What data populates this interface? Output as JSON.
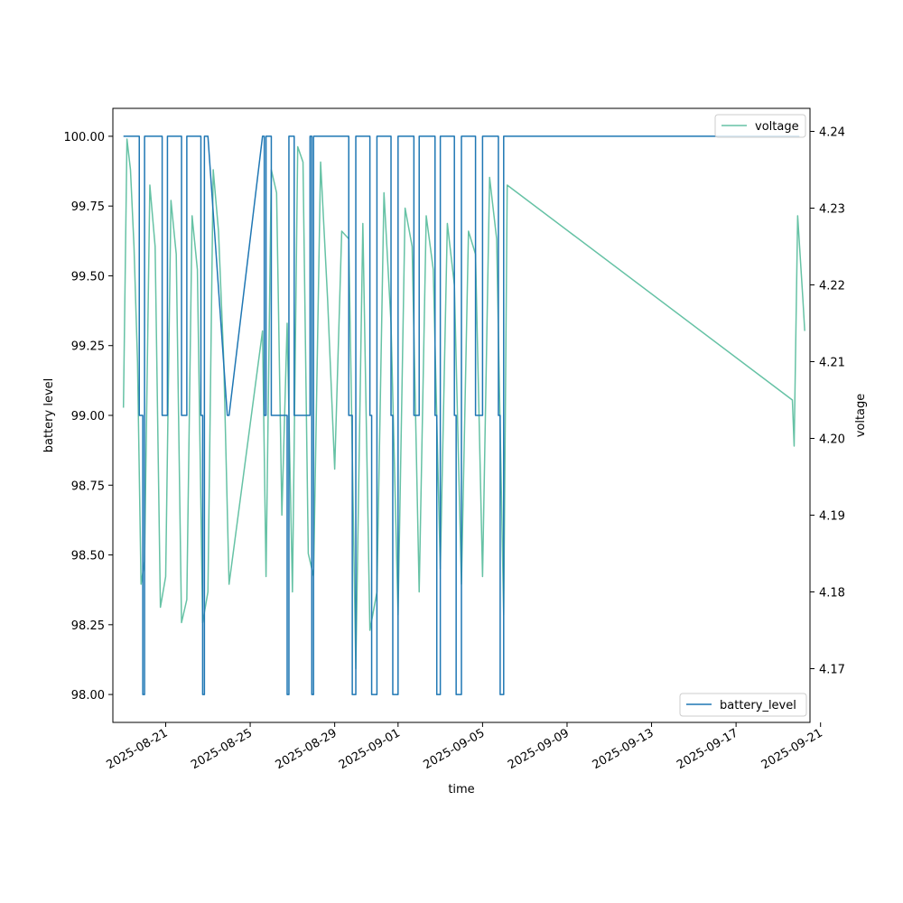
{
  "chart_data": {
    "type": "line",
    "title": "",
    "xlabel": "time",
    "ylabel": "battery level",
    "y2label": "voltage",
    "xlim": [
      "2025-08-18T12:00",
      "2025-09-20T12:00"
    ],
    "ylim": [
      97.9,
      100.1
    ],
    "y2lim": [
      4.163,
      4.243
    ],
    "x_ticks": [
      "2025-08-21",
      "2025-08-25",
      "2025-08-29",
      "2025-09-01",
      "2025-09-05",
      "2025-09-09",
      "2025-09-13",
      "2025-09-17",
      "2025-09-21"
    ],
    "y_ticks": [
      "98.00",
      "98.25",
      "98.50",
      "98.75",
      "99.00",
      "99.25",
      "99.50",
      "99.75",
      "100.00"
    ],
    "y2_ticks": [
      "4.17",
      "4.18",
      "4.19",
      "4.20",
      "4.21",
      "4.22",
      "4.23",
      "4.24"
    ],
    "grid": false,
    "series": [
      {
        "name": "battery_level",
        "axis": "left",
        "color": "#1f77b4",
        "legend": "bottom-right",
        "x": [
          "2025-08-19T00:00",
          "2025-08-19T18:00",
          "2025-08-19T18:00",
          "2025-08-19T22:00",
          "2025-08-19T22:00",
          "2025-08-20T00:00",
          "2025-08-20T00:00",
          "2025-08-20T20:00",
          "2025-08-20T20:00",
          "2025-08-21T02:00",
          "2025-08-21T02:00",
          "2025-08-21T18:00",
          "2025-08-21T18:00",
          "2025-08-22T00:00",
          "2025-08-22T00:00",
          "2025-08-22T16:00",
          "2025-08-22T16:00",
          "2025-08-22T18:00",
          "2025-08-22T18:00",
          "2025-08-22T20:00",
          "2025-08-22T20:00",
          "2025-08-23T00:00",
          "2025-08-23T00:00",
          "2025-08-23T22:00",
          "2025-08-24T00:00",
          "2025-08-25T14:00",
          "2025-08-25T16:00",
          "2025-08-25T16:00",
          "2025-08-25T18:00",
          "2025-08-25T18:00",
          "2025-08-26T00:00",
          "2025-08-26T00:00",
          "2025-08-26T18:00",
          "2025-08-26T18:00",
          "2025-08-26T20:00",
          "2025-08-26T20:00",
          "2025-08-27T02:00",
          "2025-08-27T02:00",
          "2025-08-27T20:00",
          "2025-08-27T20:00",
          "2025-08-27T22:00",
          "2025-08-27T22:00",
          "2025-08-28T00:00",
          "2025-08-28T00:00",
          "2025-08-29T16:00",
          "2025-08-29T16:00",
          "2025-08-29T20:00",
          "2025-08-29T20:00",
          "2025-08-30T00:00",
          "2025-08-30T00:00",
          "2025-08-30T16:00",
          "2025-08-30T16:00",
          "2025-08-30T18:00",
          "2025-08-30T18:00",
          "2025-08-31T00:00",
          "2025-08-31T00:00",
          "2025-08-31T16:00",
          "2025-08-31T16:00",
          "2025-08-31T18:00",
          "2025-08-31T18:00",
          "2025-09-01T00:00",
          "2025-09-01T00:00",
          "2025-09-01T18:00",
          "2025-09-01T18:00",
          "2025-09-02T00:00",
          "2025-09-02T00:00",
          "2025-09-02T18:00",
          "2025-09-02T18:00",
          "2025-09-02T20:00",
          "2025-09-02T20:00",
          "2025-09-03T00:00",
          "2025-09-03T00:00",
          "2025-09-03T16:00",
          "2025-09-03T16:00",
          "2025-09-03T18:00",
          "2025-09-03T18:00",
          "2025-09-04T00:00",
          "2025-09-04T00:00",
          "2025-09-04T16:00",
          "2025-09-04T16:00",
          "2025-09-05T00:00",
          "2025-09-05T00:00",
          "2025-09-05T18:00",
          "2025-09-05T18:00",
          "2025-09-05T20:00",
          "2025-09-05T20:00",
          "2025-09-06T00:00",
          "2025-09-06T00:00",
          "2025-09-19T18:00",
          "2025-09-19T18:00",
          "2025-09-20T00:00"
        ],
        "values": [
          100,
          100,
          99,
          99,
          98,
          98,
          100,
          100,
          99,
          99,
          100,
          100,
          99,
          99,
          100,
          100,
          99,
          99,
          98,
          98,
          100,
          100,
          100,
          99,
          99,
          100,
          100,
          99,
          99,
          100,
          100,
          99,
          99,
          98,
          98,
          100,
          100,
          99,
          99,
          100,
          100,
          98,
          98,
          100,
          100,
          99,
          99,
          98,
          98,
          100,
          100,
          99,
          99,
          98,
          98,
          100,
          100,
          99,
          99,
          98,
          98,
          100,
          100,
          99,
          99,
          100,
          100,
          99,
          99,
          98,
          98,
          100,
          100,
          99,
          99,
          98,
          98,
          100,
          100,
          99,
          99,
          100,
          100,
          99,
          99,
          98,
          98,
          100,
          100,
          100,
          100
        ]
      },
      {
        "name": "voltage",
        "axis": "right",
        "color": "#66c2a5",
        "legend": "top-right",
        "x": [
          "2025-08-19T00:00",
          "2025-08-19T04:00",
          "2025-08-19T08:00",
          "2025-08-19T12:00",
          "2025-08-19T16:00",
          "2025-08-19T20:00",
          "2025-08-20T00:00",
          "2025-08-20T06:00",
          "2025-08-20T12:00",
          "2025-08-20T18:00",
          "2025-08-21T00:00",
          "2025-08-21T06:00",
          "2025-08-21T12:00",
          "2025-08-21T18:00",
          "2025-08-22T00:00",
          "2025-08-22T06:00",
          "2025-08-22T12:00",
          "2025-08-22T18:00",
          "2025-08-23T00:00",
          "2025-08-23T06:00",
          "2025-08-23T12:00",
          "2025-08-23T18:00",
          "2025-08-24T00:00",
          "2025-08-25T14:00",
          "2025-08-25T18:00",
          "2025-08-26T00:00",
          "2025-08-26T06:00",
          "2025-08-26T12:00",
          "2025-08-26T18:00",
          "2025-08-27T00:00",
          "2025-08-27T06:00",
          "2025-08-27T12:00",
          "2025-08-27T18:00",
          "2025-08-28T00:00",
          "2025-08-28T08:00",
          "2025-08-28T16:00",
          "2025-08-29T00:00",
          "2025-08-29T08:00",
          "2025-08-29T16:00",
          "2025-08-30T00:00",
          "2025-08-30T08:00",
          "2025-08-30T16:00",
          "2025-08-31T00:00",
          "2025-08-31T08:00",
          "2025-08-31T16:00",
          "2025-09-01T00:00",
          "2025-09-01T08:00",
          "2025-09-01T16:00",
          "2025-09-02T00:00",
          "2025-09-02T08:00",
          "2025-09-02T16:00",
          "2025-09-03T00:00",
          "2025-09-03T08:00",
          "2025-09-03T16:00",
          "2025-09-04T00:00",
          "2025-09-04T08:00",
          "2025-09-04T16:00",
          "2025-09-05T00:00",
          "2025-09-05T08:00",
          "2025-09-05T16:00",
          "2025-09-06T00:00",
          "2025-09-06T04:00",
          "2025-09-19T16:00",
          "2025-09-19T18:00",
          "2025-09-19T22:00",
          "2025-09-20T04:00",
          "2025-09-20T06:00"
        ],
        "values": [
          4.204,
          4.239,
          4.235,
          4.225,
          4.21,
          4.181,
          4.184,
          4.233,
          4.225,
          4.178,
          4.182,
          4.231,
          4.224,
          4.176,
          4.179,
          4.229,
          4.222,
          4.176,
          4.18,
          4.235,
          4.227,
          4.21,
          4.181,
          4.214,
          4.182,
          4.235,
          4.232,
          4.19,
          4.215,
          4.18,
          4.238,
          4.236,
          4.185,
          4.182,
          4.236,
          4.218,
          4.196,
          4.227,
          4.226,
          4.17,
          4.228,
          4.175,
          4.18,
          4.232,
          4.215,
          4.177,
          4.23,
          4.225,
          4.18,
          4.229,
          4.222,
          4.183,
          4.228,
          4.22,
          4.181,
          4.227,
          4.224,
          4.182,
          4.234,
          4.226,
          4.177,
          4.233,
          4.205,
          4.199,
          4.229,
          4.218,
          4.214
        ]
      }
    ]
  }
}
